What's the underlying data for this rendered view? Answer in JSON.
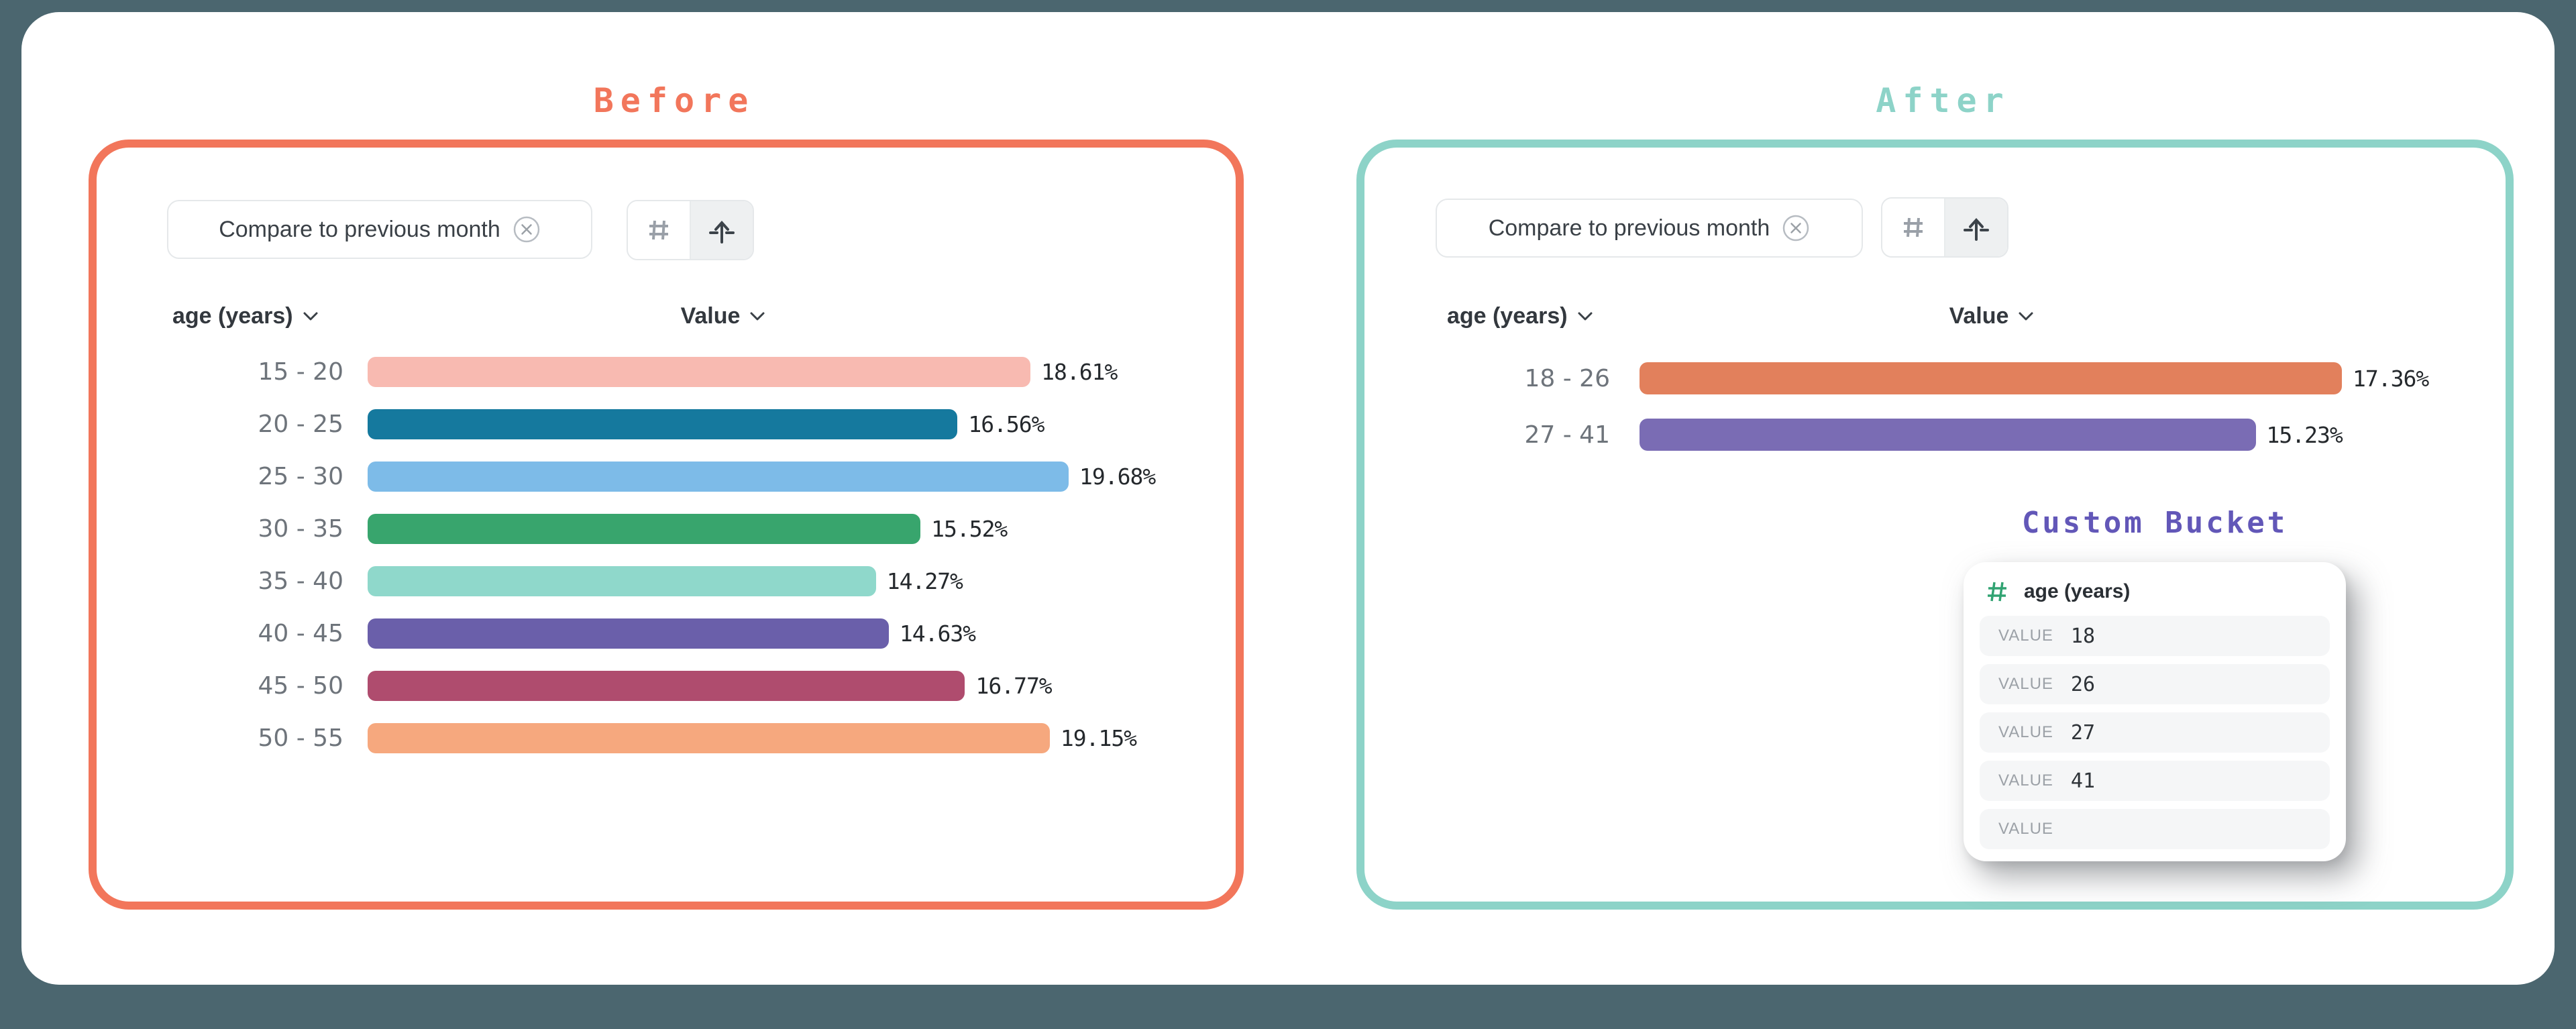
{
  "window": {
    "background_color": "#4B666F",
    "card_background": "#FFFFFF"
  },
  "before_panel": {
    "title": "Before",
    "accent_color": "#F2765B",
    "chip": {
      "label": "Compare to previous month",
      "remove_icon": "circle-x-icon"
    },
    "toolbar": {
      "buttons": [
        {
          "icon": "hash-icon",
          "selected": false
        },
        {
          "icon": "align-up-arrow-icon",
          "selected": true
        }
      ]
    },
    "columns": {
      "dimension": "age (years)",
      "value": "Value"
    }
  },
  "after_panel": {
    "title": "After",
    "accent_color": "#8DD3C8",
    "chip": {
      "label": "Compare to previous month",
      "remove_icon": "circle-x-icon"
    },
    "toolbar": {
      "buttons": [
        {
          "icon": "hash-icon",
          "selected": false
        },
        {
          "icon": "align-up-arrow-icon",
          "selected": true
        }
      ]
    },
    "columns": {
      "dimension": "age (years)",
      "value": "Value"
    }
  },
  "custom_bucket": {
    "title": "Custom Bucket",
    "title_color": "#6257B8",
    "field_icon": "hash-icon",
    "field_icon_color": "#31A372",
    "field_label": "age (years)",
    "rows": [
      {
        "label": "VALUE",
        "value": "18"
      },
      {
        "label": "VALUE",
        "value": "26"
      },
      {
        "label": "VALUE",
        "value": "27"
      },
      {
        "label": "VALUE",
        "value": "41"
      },
      {
        "label": "VALUE",
        "value": ""
      }
    ]
  },
  "chart_data": [
    {
      "type": "bar",
      "orientation": "horizontal",
      "title": "Before",
      "dimension_label": "age (years)",
      "value_label": "Value",
      "categories": [
        "15 - 20",
        "20 - 25",
        "25 - 30",
        "30 - 35",
        "35 - 40",
        "40 - 45",
        "45 - 50",
        "50 - 55"
      ],
      "values": [
        18.61,
        16.56,
        19.68,
        15.52,
        14.27,
        14.63,
        16.77,
        19.15
      ],
      "value_labels": [
        "18.61%",
        "16.56%",
        "19.68%",
        "15.52%",
        "14.27%",
        "14.63%",
        "16.77%",
        "19.15%"
      ],
      "bar_colors": [
        "#F8BAB1",
        "#15799E",
        "#7DBBE8",
        "#38A56D",
        "#8FD8CB",
        "#6A5FAA",
        "#AF4C6E",
        "#F6A87E"
      ],
      "xlim": [
        0,
        20
      ],
      "grid": false,
      "legend": "none",
      "value_label_position": "right-of-bar"
    },
    {
      "type": "bar",
      "orientation": "horizontal",
      "title": "After",
      "dimension_label": "age (years)",
      "value_label": "Value",
      "categories": [
        "18 - 26",
        "27 - 41"
      ],
      "values": [
        17.36,
        15.23
      ],
      "value_labels": [
        "17.36%",
        "15.23%"
      ],
      "bar_colors": [
        "#E2805C",
        "#7A6CB4"
      ],
      "xlim": [
        0,
        18
      ],
      "grid": false,
      "legend": "none",
      "value_label_position": "right-of-bar"
    }
  ]
}
